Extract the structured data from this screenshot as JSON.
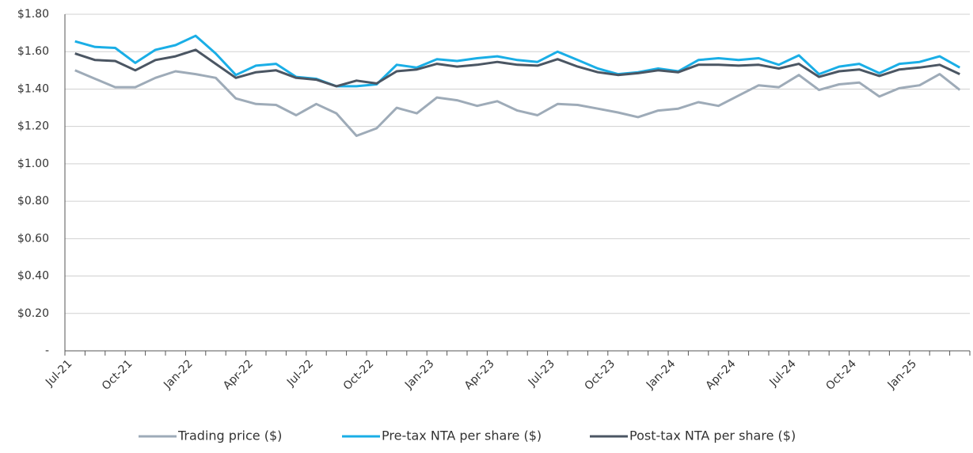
{
  "chart_data": {
    "type": "line",
    "categories": [
      "Jul-21",
      null,
      null,
      "Oct-21",
      null,
      null,
      "Jan-22",
      null,
      null,
      "Apr-22",
      null,
      null,
      "Jul-22",
      null,
      null,
      "Oct-22",
      null,
      null,
      "Jan-23",
      null,
      null,
      "Apr-23",
      null,
      null,
      "Jul-23",
      null,
      null,
      "Oct-23",
      null,
      null,
      "Jan-24",
      null,
      null,
      "Apr-24",
      null,
      null,
      "Jul-24",
      null,
      null,
      "Oct-24",
      null,
      null,
      "Jan-25",
      null,
      null
    ],
    "series": [
      {
        "name": "Trading price ($)",
        "color": "#9eabb8",
        "values": [
          1.5,
          1.455,
          1.41,
          1.41,
          1.46,
          1.495,
          1.48,
          1.46,
          1.35,
          1.32,
          1.315,
          1.26,
          1.32,
          1.27,
          1.15,
          1.19,
          1.3,
          1.27,
          1.355,
          1.34,
          1.31,
          1.335,
          1.285,
          1.26,
          1.32,
          1.315,
          1.295,
          1.275,
          1.25,
          1.285,
          1.295,
          1.33,
          1.31,
          1.365,
          1.42,
          1.41,
          1.475,
          1.395,
          1.425,
          1.435,
          1.36,
          1.405,
          1.42,
          1.48,
          1.395
        ]
      },
      {
        "name": "Pre-tax NTA per share ($)",
        "color": "#1aaee6",
        "values": [
          1.655,
          1.625,
          1.62,
          1.54,
          1.61,
          1.635,
          1.685,
          1.59,
          1.475,
          1.525,
          1.535,
          1.465,
          1.455,
          1.415,
          1.415,
          1.425,
          1.53,
          1.515,
          1.56,
          1.55,
          1.565,
          1.575,
          1.555,
          1.545,
          1.6,
          1.555,
          1.51,
          1.48,
          1.49,
          1.51,
          1.495,
          1.555,
          1.565,
          1.555,
          1.565,
          1.53,
          1.58,
          1.48,
          1.52,
          1.535,
          1.485,
          1.535,
          1.545,
          1.575,
          1.515
        ]
      },
      {
        "name": "Post-tax NTA per share ($)",
        "color": "#4b5663",
        "values": [
          1.59,
          1.555,
          1.55,
          1.5,
          1.555,
          1.575,
          1.61,
          1.535,
          1.46,
          1.49,
          1.5,
          1.46,
          1.45,
          1.415,
          1.445,
          1.43,
          1.495,
          1.505,
          1.535,
          1.52,
          1.53,
          1.545,
          1.53,
          1.525,
          1.56,
          1.52,
          1.49,
          1.475,
          1.485,
          1.5,
          1.49,
          1.53,
          1.53,
          1.525,
          1.53,
          1.51,
          1.535,
          1.465,
          1.495,
          1.505,
          1.47,
          1.505,
          1.515,
          1.53,
          1.48
        ]
      }
    ],
    "ylim": [
      0,
      1.8
    ],
    "yticks": [
      {
        "value": 0,
        "label": "-"
      },
      {
        "value": 0.2,
        "label": "$0.20"
      },
      {
        "value": 0.4,
        "label": "$0.40"
      },
      {
        "value": 0.6,
        "label": "$0.60"
      },
      {
        "value": 0.8,
        "label": "$0.80"
      },
      {
        "value": 1.0,
        "label": "$1.00"
      },
      {
        "value": 1.2,
        "label": "$1.20"
      },
      {
        "value": 1.4,
        "label": "$1.40"
      },
      {
        "value": 1.6,
        "label": "$1.60"
      },
      {
        "value": 1.8,
        "label": "$1.80"
      }
    ],
    "grid": true,
    "legend": "bottom"
  }
}
